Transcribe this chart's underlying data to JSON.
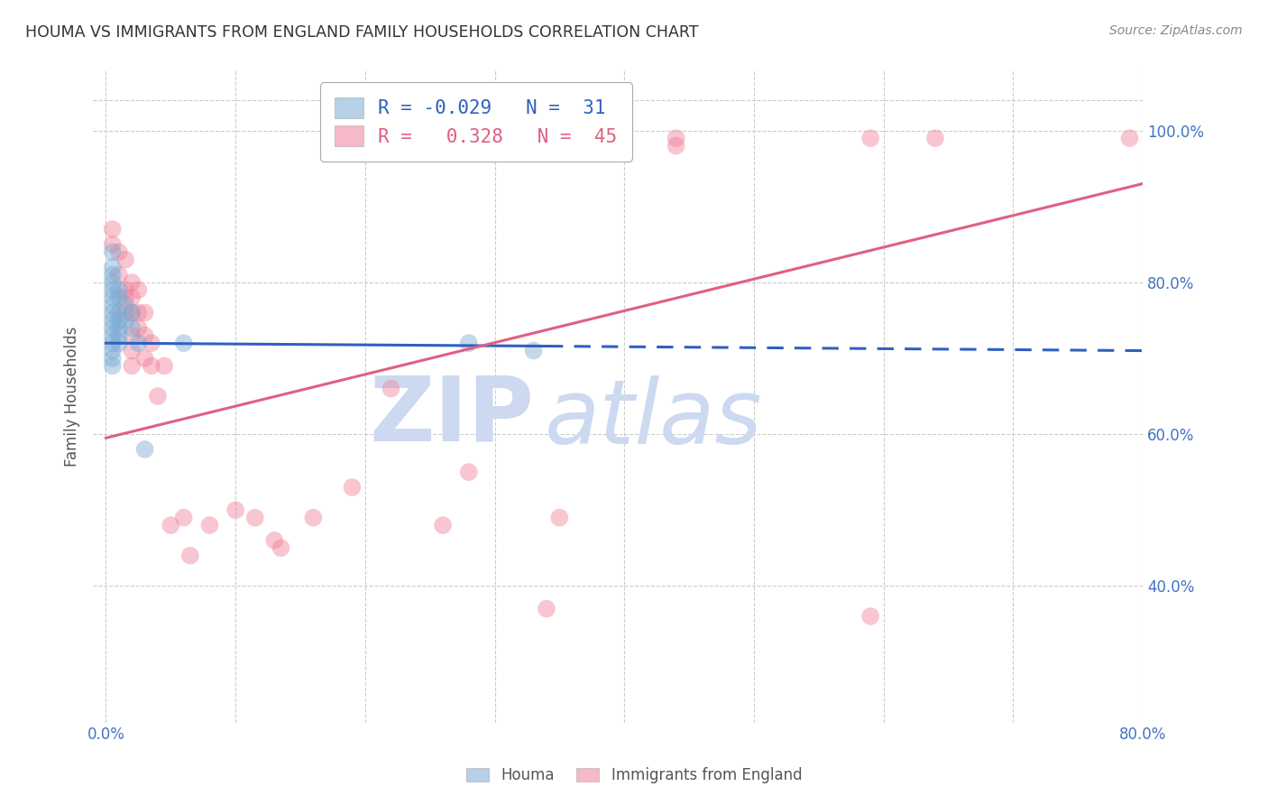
{
  "title": "HOUMA VS IMMIGRANTS FROM ENGLAND FAMILY HOUSEHOLDS CORRELATION CHART",
  "source": "Source: ZipAtlas.com",
  "ylabel": "Family Households",
  "houma_color": "#7aaad4",
  "england_color": "#f0819a",
  "houma_line_color": "#3060c0",
  "england_line_color": "#e06080",
  "houma_scatter": [
    [
      0.005,
      0.84
    ],
    [
      0.005,
      0.82
    ],
    [
      0.005,
      0.81
    ],
    [
      0.005,
      0.8
    ],
    [
      0.005,
      0.79
    ],
    [
      0.005,
      0.78
    ],
    [
      0.005,
      0.77
    ],
    [
      0.005,
      0.76
    ],
    [
      0.005,
      0.75
    ],
    [
      0.005,
      0.74
    ],
    [
      0.005,
      0.73
    ],
    [
      0.005,
      0.72
    ],
    [
      0.005,
      0.71
    ],
    [
      0.005,
      0.7
    ],
    [
      0.005,
      0.69
    ],
    [
      0.01,
      0.79
    ],
    [
      0.01,
      0.78
    ],
    [
      0.01,
      0.76
    ],
    [
      0.01,
      0.75
    ],
    [
      0.01,
      0.74
    ],
    [
      0.01,
      0.73
    ],
    [
      0.01,
      0.72
    ],
    [
      0.015,
      0.77
    ],
    [
      0.015,
      0.75
    ],
    [
      0.02,
      0.76
    ],
    [
      0.02,
      0.74
    ],
    [
      0.025,
      0.72
    ],
    [
      0.03,
      0.58
    ],
    [
      0.28,
      0.72
    ],
    [
      0.33,
      0.71
    ],
    [
      0.06,
      0.72
    ]
  ],
  "england_scatter": [
    [
      0.005,
      0.87
    ],
    [
      0.005,
      0.85
    ],
    [
      0.01,
      0.84
    ],
    [
      0.01,
      0.81
    ],
    [
      0.015,
      0.83
    ],
    [
      0.015,
      0.79
    ],
    [
      0.015,
      0.78
    ],
    [
      0.015,
      0.76
    ],
    [
      0.02,
      0.8
    ],
    [
      0.02,
      0.78
    ],
    [
      0.02,
      0.76
    ],
    [
      0.02,
      0.73
    ],
    [
      0.02,
      0.71
    ],
    [
      0.02,
      0.69
    ],
    [
      0.025,
      0.79
    ],
    [
      0.025,
      0.76
    ],
    [
      0.025,
      0.74
    ],
    [
      0.03,
      0.76
    ],
    [
      0.03,
      0.73
    ],
    [
      0.03,
      0.7
    ],
    [
      0.035,
      0.72
    ],
    [
      0.035,
      0.69
    ],
    [
      0.04,
      0.65
    ],
    [
      0.045,
      0.69
    ],
    [
      0.05,
      0.48
    ],
    [
      0.06,
      0.49
    ],
    [
      0.065,
      0.44
    ],
    [
      0.08,
      0.48
    ],
    [
      0.1,
      0.5
    ],
    [
      0.115,
      0.49
    ],
    [
      0.13,
      0.46
    ],
    [
      0.135,
      0.45
    ],
    [
      0.16,
      0.49
    ],
    [
      0.19,
      0.53
    ],
    [
      0.22,
      0.66
    ],
    [
      0.26,
      0.48
    ],
    [
      0.28,
      0.55
    ],
    [
      0.34,
      0.37
    ],
    [
      0.35,
      0.49
    ],
    [
      0.44,
      0.99
    ],
    [
      0.44,
      0.98
    ],
    [
      0.59,
      0.99
    ],
    [
      0.59,
      0.36
    ],
    [
      0.64,
      0.99
    ],
    [
      0.79,
      0.99
    ]
  ],
  "houma_line_solid": {
    "x": [
      0.0,
      0.34
    ],
    "y": [
      0.72,
      0.716
    ]
  },
  "houma_line_dash": {
    "x": [
      0.34,
      0.8
    ],
    "y": [
      0.716,
      0.71
    ]
  },
  "england_line": {
    "x": [
      0.0,
      0.8
    ],
    "y": [
      0.595,
      0.93
    ]
  },
  "xlim": [
    -0.01,
    0.8
  ],
  "ylim": [
    0.22,
    1.08
  ],
  "right_yticks": [
    0.4,
    0.6,
    0.8,
    1.0
  ],
  "right_yticklabels": [
    "40.0%",
    "60.0%",
    "80.0%",
    "100.0%"
  ],
  "xticks": [
    0.0,
    0.1,
    0.2,
    0.3,
    0.4,
    0.5,
    0.6,
    0.7,
    0.8
  ],
  "xticklabels": [
    "0.0%",
    "",
    "",
    "",
    "",
    "",
    "",
    "",
    "80.0%"
  ],
  "grid_yticks": [
    0.4,
    0.6,
    0.8,
    1.0,
    1.04
  ],
  "grid_color": "#cccccc",
  "bg_color": "#ffffff",
  "axis_label_color": "#4472c4",
  "watermark_zip": "ZIP",
  "watermark_atlas": "atlas",
  "watermark_color": "#ccd9f0",
  "legend_label1": "R = -0.029   N =  31",
  "legend_label2": "R =   0.328   N =  45"
}
